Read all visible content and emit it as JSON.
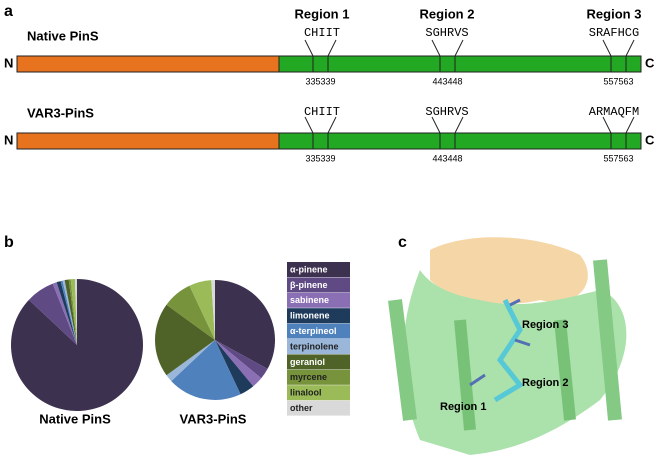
{
  "panel_a": {
    "label": "a",
    "regions": [
      "Region 1",
      "Region 2",
      "Region 3"
    ],
    "terminals": [
      "N",
      "C"
    ],
    "constructs": [
      {
        "name": "Native PinS",
        "sequences": [
          "CHIIT",
          "SGHRVS",
          "SRAFHCG"
        ],
        "positions": [
          "335",
          "339",
          "443",
          "448",
          "557",
          "563"
        ]
      },
      {
        "name": "VAR3-PinS",
        "sequences": [
          "CHIIT",
          "SGHRVS",
          "ARMAQFM"
        ],
        "positions": [
          "335",
          "339",
          "443",
          "448",
          "557",
          "563"
        ]
      }
    ]
  },
  "panel_b_label": "b",
  "chart_data": [
    {
      "type": "pie",
      "title": "Native PinS",
      "categories": [
        "α-pinene",
        "β-pinene",
        "sabinene",
        "limonene",
        "α-terpineol",
        "terpinolene",
        "geraniol",
        "myrcene",
        "linalool",
        "other"
      ],
      "colors": [
        "#3d3150",
        "#5f4a84",
        "#8b6fb5",
        "#1f3b5c",
        "#4f81bd",
        "#9ab7da",
        "#4f6228",
        "#77933c",
        "#9bbb59",
        "#d9d9d9"
      ],
      "values": [
        87,
        7,
        1,
        1,
        0.5,
        0.5,
        1,
        0.5,
        1,
        0.5
      ]
    },
    {
      "type": "pie",
      "title": "VAR3-PinS",
      "categories": [
        "α-pinene",
        "β-pinene",
        "sabinene",
        "limonene",
        "α-terpineol",
        "terpinolene",
        "geraniol",
        "myrcene",
        "linalool",
        "other"
      ],
      "colors": [
        "#3d3150",
        "#5f4a84",
        "#8b6fb5",
        "#1f3b5c",
        "#4f81bd",
        "#9ab7da",
        "#4f6228",
        "#77933c",
        "#9bbb59",
        "#d9d9d9"
      ],
      "values": [
        33,
        3,
        3,
        4,
        20,
        2,
        20,
        8,
        6,
        1
      ]
    }
  ],
  "panel_c": {
    "label": "c",
    "annotations": [
      "Region 3",
      "Region 2",
      "Region 1"
    ]
  }
}
